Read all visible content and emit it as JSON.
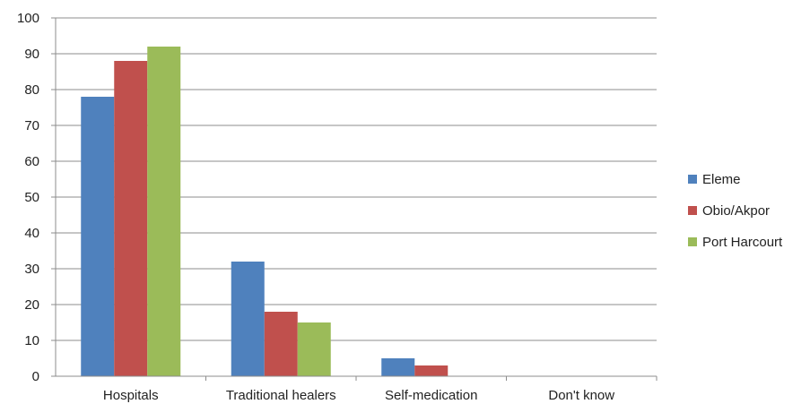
{
  "chart_data": {
    "type": "bar",
    "title": "",
    "xlabel": "",
    "ylabel": "",
    "categories": [
      "Hospitals",
      "Traditional healers",
      "Self-medication",
      "Don't know"
    ],
    "series": [
      {
        "name": "Eleme",
        "color": "#4f81bd",
        "values": [
          78,
          32,
          5,
          0
        ]
      },
      {
        "name": "Obio/Akpor",
        "color": "#c0504d",
        "values": [
          88,
          18,
          3,
          0
        ]
      },
      {
        "name": "Port Harcourt",
        "color": "#9bbb59",
        "values": [
          92,
          15,
          0,
          0
        ]
      }
    ],
    "ylim": [
      0,
      100
    ],
    "yticks": [
      0,
      10,
      20,
      30,
      40,
      50,
      60,
      70,
      80,
      90,
      100
    ],
    "grid": true,
    "legend_position": "right"
  }
}
